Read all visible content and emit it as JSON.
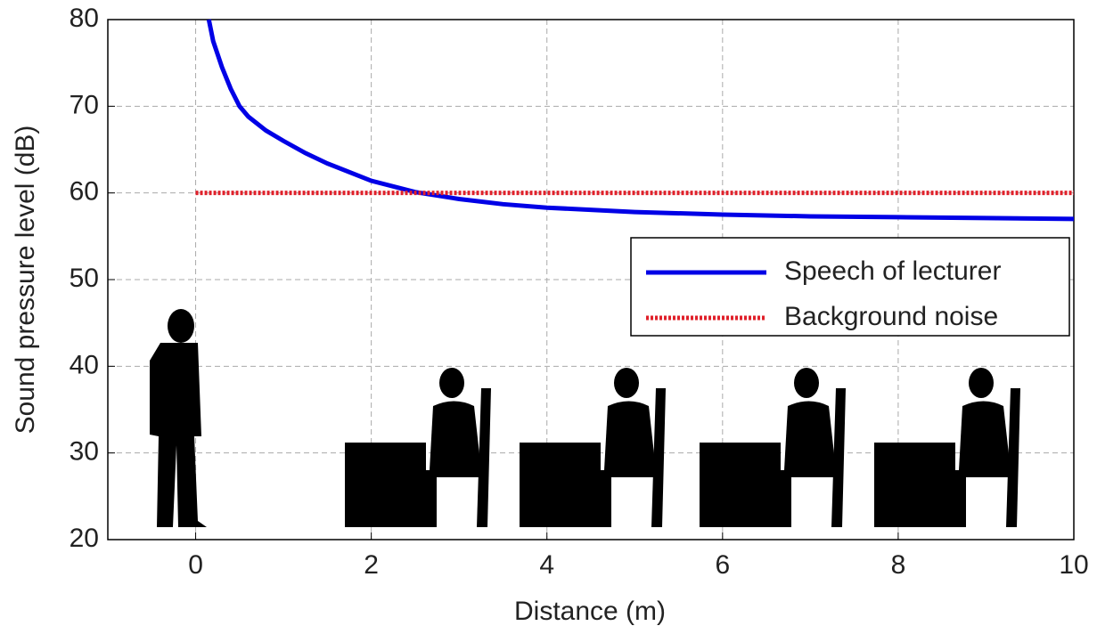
{
  "chart_data": {
    "type": "line",
    "xlabel": "Distance (m)",
    "ylabel": "Sound pressure level (dB)",
    "xlim": [
      -1,
      10
    ],
    "xticks": [
      0,
      2,
      4,
      6,
      8,
      10
    ],
    "ylim": [
      20,
      80
    ],
    "yticks": [
      20,
      30,
      40,
      50,
      60,
      70,
      80
    ],
    "grid": true,
    "legend": "right",
    "series": [
      {
        "name": "Speech of lecturer",
        "color": "#0000e6",
        "linestyle": "solid",
        "x": [
          0.15,
          0.2,
          0.3,
          0.4,
          0.5,
          0.6,
          0.8,
          1,
          1.25,
          1.5,
          2,
          2.5,
          3,
          3.5,
          4,
          5,
          6,
          7,
          8,
          9,
          10
        ],
        "values": [
          80,
          77.5,
          74.5,
          72,
          70,
          68.8,
          67.2,
          66,
          64.6,
          63.4,
          61.4,
          60.1,
          59.3,
          58.7,
          58.3,
          57.8,
          57.5,
          57.3,
          57.2,
          57.1,
          57
        ]
      },
      {
        "name": "Background noise",
        "color": "#e0202a",
        "linestyle": "dotted",
        "x": [
          0,
          10
        ],
        "values": [
          60,
          60
        ]
      }
    ]
  }
}
